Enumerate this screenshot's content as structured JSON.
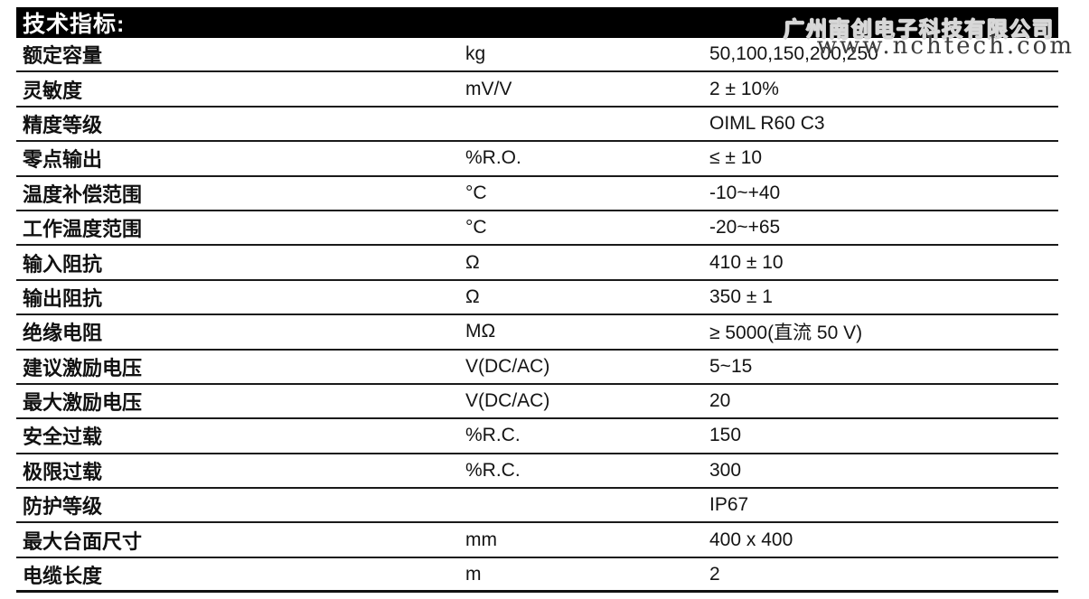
{
  "header": {
    "title": "技术指标:",
    "watermark_company": "广州南创电子科技有限公司",
    "watermark_url": "www.nchtech.com"
  },
  "colors": {
    "header_bg": "#000000",
    "header_text": "#ffffff",
    "row_border": "#1a1a1a",
    "text": "#141414",
    "watermark_outline": "#d8d8d8"
  },
  "table": {
    "rows": [
      {
        "param": "额定容量",
        "unit": "kg",
        "value": "50,100,150,200,250"
      },
      {
        "param": "灵敏度",
        "unit": "mV/V",
        "value": "2 ± 10%"
      },
      {
        "param": "精度等级",
        "unit": "",
        "value": "OIML R60 C3"
      },
      {
        "param": "零点输出",
        "unit": "%R.O.",
        "value": "≤ ± 10"
      },
      {
        "param": "温度补偿范围",
        "unit": "°C",
        "value": "-10~+40"
      },
      {
        "param": "工作温度范围",
        "unit": "°C",
        "value": "-20~+65"
      },
      {
        "param": "输入阻抗",
        "unit": "Ω",
        "value": "410 ± 10"
      },
      {
        "param": "输出阻抗",
        "unit": "Ω",
        "value": "350 ± 1"
      },
      {
        "param": "绝缘电阻",
        "unit": "MΩ",
        "value": "≥ 5000(直流 50 V)"
      },
      {
        "param": "建议激励电压",
        "unit": "V(DC/AC)",
        "value": "5~15"
      },
      {
        "param": "最大激励电压",
        "unit": "V(DC/AC)",
        "value": "20"
      },
      {
        "param": "安全过载",
        "unit": "%R.C.",
        "value": "150"
      },
      {
        "param": "极限过载",
        "unit": "%R.C.",
        "value": "300"
      },
      {
        "param": "防护等级",
        "unit": "",
        "value": "IP67"
      },
      {
        "param": "最大台面尺寸",
        "unit": "mm",
        "value": "400 x 400"
      },
      {
        "param": "电缆长度",
        "unit": "m",
        "value": "2"
      }
    ]
  }
}
